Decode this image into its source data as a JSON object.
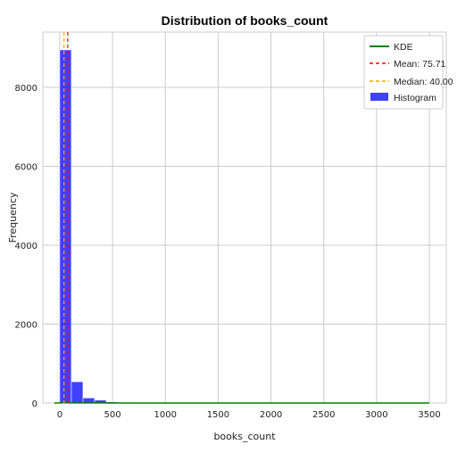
{
  "chart_data": {
    "type": "bar",
    "title": "Distribution of books_count",
    "xlabel": "books_count",
    "ylabel": "Frequency",
    "xlim": [
      -160,
      3660
    ],
    "ylim": [
      0,
      9400
    ],
    "xticks": [
      0,
      500,
      1000,
      1500,
      2000,
      2500,
      3000,
      3500
    ],
    "yticks": [
      0,
      2000,
      4000,
      6000,
      8000
    ],
    "grid": true,
    "legend_position": "top-right",
    "histogram": {
      "name": "Histogram",
      "color": "#0000ff",
      "bins": [
        {
          "x0": -7,
          "x1": 0,
          "count": 2
        },
        {
          "x0": 0,
          "x1": 110,
          "count": 8950
        },
        {
          "x0": 110,
          "x1": 220,
          "count": 540
        },
        {
          "x0": 220,
          "x1": 330,
          "count": 130
        },
        {
          "x0": 330,
          "x1": 440,
          "count": 75
        },
        {
          "x0": 440,
          "x1": 550,
          "count": 30
        },
        {
          "x0": 550,
          "x1": 660,
          "count": 15
        },
        {
          "x0": 660,
          "x1": 770,
          "count": 8
        },
        {
          "x0": 770,
          "x1": 880,
          "count": 5
        },
        {
          "x0": 880,
          "x1": 990,
          "count": 3
        }
      ]
    },
    "kde": {
      "name": "KDE",
      "color": "#008000",
      "x": [
        -50,
        0,
        30,
        60,
        90,
        150,
        250,
        400,
        600,
        1000,
        2000,
        3000,
        3500
      ],
      "y": [
        0,
        3,
        6,
        7,
        6,
        4,
        3,
        2,
        1,
        0.5,
        0.2,
        0.1,
        0
      ]
    },
    "mean": {
      "label": "Mean: 75.71",
      "value": 75.71,
      "color": "#ff0000"
    },
    "median": {
      "label": "Median: 40.00",
      "value": 40.0,
      "color": "#ffa500"
    }
  }
}
